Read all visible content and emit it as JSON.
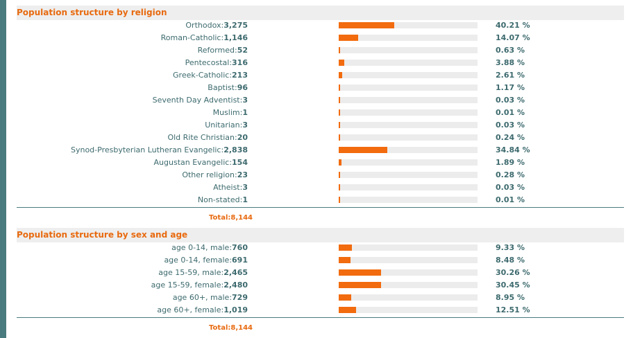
{
  "religion": {
    "title": "Population structure by religion",
    "rows": [
      {
        "name": "Orthodox",
        "count": "3,275",
        "pct": "40.21 %",
        "fraction": 0.4021
      },
      {
        "name": "Roman-Catholic",
        "count": "1,146",
        "pct": "14.07 %",
        "fraction": 0.1407
      },
      {
        "name": "Reformed",
        "count": "52",
        "pct": "0.63 %",
        "fraction": 0.0063
      },
      {
        "name": "Pentecostal",
        "count": "316",
        "pct": "3.88 %",
        "fraction": 0.0388
      },
      {
        "name": "Greek-Catholic",
        "count": "213",
        "pct": "2.61 %",
        "fraction": 0.0261
      },
      {
        "name": "Baptist",
        "count": "96",
        "pct": "1.17 %",
        "fraction": 0.0117
      },
      {
        "name": "Seventh Day Adventist",
        "count": "3",
        "pct": "0.03 %",
        "fraction": 0.0003
      },
      {
        "name": "Muslim",
        "count": "1",
        "pct": "0.01 %",
        "fraction": 0.0001
      },
      {
        "name": "Unitarian",
        "count": "3",
        "pct": "0.03 %",
        "fraction": 0.0003
      },
      {
        "name": "Old Rite Christian",
        "count": "20",
        "pct": "0.24 %",
        "fraction": 0.0024
      },
      {
        "name": "Synod-Presbyterian Lutheran Evangelic",
        "count": "2,838",
        "pct": "34.84 %",
        "fraction": 0.3484
      },
      {
        "name": "Augustan Evangelic",
        "count": "154",
        "pct": "1.89 %",
        "fraction": 0.0189
      },
      {
        "name": "Other religion",
        "count": "23",
        "pct": "0.28 %",
        "fraction": 0.0028
      },
      {
        "name": "Atheist",
        "count": "3",
        "pct": "0.03 %",
        "fraction": 0.0003
      },
      {
        "name": "Non-stated",
        "count": "1",
        "pct": "0.01 %",
        "fraction": 0.0001
      }
    ],
    "total": "Total:8,144"
  },
  "sex_age": {
    "title": "Population structure by sex and age",
    "rows": [
      {
        "name": "age 0-14, male",
        "count": "760",
        "pct": "9.33 %",
        "fraction": 0.0933
      },
      {
        "name": "age 0-14, female",
        "count": "691",
        "pct": "8.48 %",
        "fraction": 0.0848
      },
      {
        "name": "age 15-59, male",
        "count": "2,465",
        "pct": "30.26 %",
        "fraction": 0.3026
      },
      {
        "name": "age 15-59, female",
        "count": "2,480",
        "pct": "30.45 %",
        "fraction": 0.3045
      },
      {
        "name": "age 60+, male",
        "count": "729",
        "pct": "8.95 %",
        "fraction": 0.0895
      },
      {
        "name": "age 60+, female",
        "count": "1,019",
        "pct": "12.51 %",
        "fraction": 0.1251
      }
    ],
    "total": "Total:8,144"
  },
  "colors": {
    "accent": "#f26b0e",
    "text": "#3d6a6e",
    "track": "#ececec"
  }
}
